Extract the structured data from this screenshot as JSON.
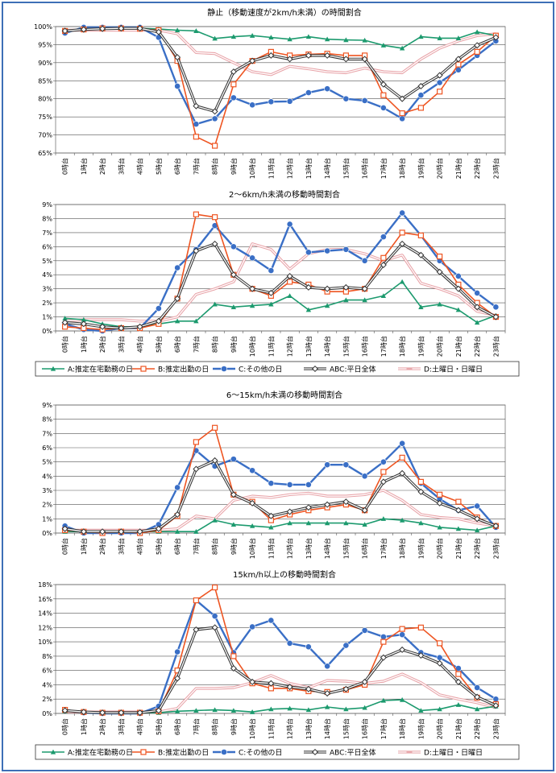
{
  "colors": {
    "A": "#1c9a6e",
    "B": "#ee5522",
    "C": "#3a6fc6",
    "ABC": "#333333",
    "D": "#e8a3a8",
    "frame": "#3d6fb6"
  },
  "legend": [
    {
      "key": "A",
      "label": "A:推定在宅勤務の日"
    },
    {
      "key": "B",
      "label": "B:推定出勤の日"
    },
    {
      "key": "C",
      "label": "C:その他の日"
    },
    {
      "key": "ABC",
      "label": "ABC:平日全体"
    },
    {
      "key": "D",
      "label": "D:土曜日・日曜日"
    }
  ],
  "chart_data": [
    {
      "type": "line",
      "title": "静止（移動速度が2km/h未満）の時間割合",
      "categories": [
        "0時台",
        "1時台",
        "2時台",
        "3時台",
        "4時台",
        "5時台",
        "6時台",
        "7時台",
        "8時台",
        "9時台",
        "10時台",
        "11時台",
        "12時台",
        "13時台",
        "14時台",
        "15時台",
        "16時台",
        "17時台",
        "18時台",
        "19時台",
        "20時台",
        "21時台",
        "22時台",
        "23時台"
      ],
      "ylim": [
        65,
        100
      ],
      "yticks": [
        65,
        70,
        75,
        80,
        85,
        90,
        95,
        100
      ],
      "unit": "%",
      "series": [
        {
          "key": "A",
          "values": [
            99.0,
            99.2,
            99.5,
            99.6,
            99.5,
            99.3,
            99.0,
            98.8,
            96.7,
            97.2,
            97.5,
            97.0,
            96.5,
            97.2,
            96.5,
            96.3,
            96.2,
            94.8,
            94.0,
            97.2,
            96.8,
            96.8,
            98.5,
            97.5
          ]
        },
        {
          "key": "B",
          "values": [
            98.8,
            99.2,
            99.5,
            99.5,
            99.4,
            99.0,
            90.5,
            69.5,
            67.0,
            84.0,
            90.5,
            93.0,
            92.0,
            92.3,
            92.5,
            92.0,
            92.0,
            81.0,
            76.0,
            77.5,
            82.0,
            89.5,
            93.0,
            97.5
          ]
        },
        {
          "key": "C",
          "values": [
            98.2,
            99.8,
            99.8,
            99.8,
            99.8,
            97.0,
            83.5,
            73.0,
            74.5,
            80.3,
            78.3,
            79.2,
            79.3,
            81.7,
            82.8,
            80.0,
            79.5,
            77.5,
            74.5,
            81.0,
            84.5,
            88.0,
            92.0,
            96.0
          ]
        },
        {
          "key": "ABC",
          "values": [
            98.8,
            99.2,
            99.4,
            99.5,
            99.5,
            98.5,
            91.5,
            78.0,
            76.5,
            87.5,
            90.5,
            92.0,
            91.0,
            92.0,
            92.0,
            91.0,
            91.0,
            84.0,
            80.0,
            83.5,
            86.5,
            91.0,
            94.8,
            97.0
          ]
        },
        {
          "key": "D",
          "values": [
            99.0,
            99.0,
            99.0,
            99.0,
            99.0,
            99.0,
            98.0,
            92.8,
            92.5,
            90.0,
            87.5,
            86.7,
            89.0,
            88.3,
            87.5,
            87.2,
            88.5,
            87.5,
            87.2,
            91.0,
            94.0,
            96.0,
            97.5,
            98.0
          ]
        }
      ]
    },
    {
      "type": "line",
      "title": "2～6km/h未満の移動時間割合",
      "categories": [
        "0時台",
        "1時台",
        "2時台",
        "3時台",
        "4時台",
        "5時台",
        "6時台",
        "7時台",
        "8時台",
        "9時台",
        "10時台",
        "11時台",
        "12時台",
        "13時台",
        "14時台",
        "15時台",
        "16時台",
        "17時台",
        "18時台",
        "19時台",
        "20時台",
        "21時台",
        "22時台",
        "23時台"
      ],
      "ylim": [
        0,
        9
      ],
      "yticks": [
        0,
        1,
        2,
        3,
        4,
        5,
        6,
        7,
        8,
        9
      ],
      "unit": "%",
      "series": [
        {
          "key": "A",
          "values": [
            0.9,
            0.8,
            0.5,
            0.3,
            0.3,
            0.5,
            0.7,
            0.7,
            1.9,
            1.7,
            1.8,
            1.9,
            2.5,
            1.5,
            1.8,
            2.2,
            2.2,
            2.5,
            3.5,
            1.7,
            1.9,
            1.5,
            0.6,
            1.1
          ]
        },
        {
          "key": "B",
          "values": [
            0.3,
            0.2,
            0.1,
            0.2,
            0.2,
            0.5,
            2.3,
            8.3,
            8.1,
            4.0,
            3.0,
            2.5,
            3.5,
            3.3,
            2.8,
            2.8,
            3.0,
            5.2,
            7.0,
            6.8,
            5.3,
            3.3,
            2.0,
            1.0
          ]
        },
        {
          "key": "C",
          "values": [
            0.5,
            0.1,
            0.0,
            0.2,
            0.2,
            1.6,
            4.5,
            5.8,
            7.5,
            6.0,
            5.2,
            4.3,
            7.6,
            5.6,
            5.7,
            5.8,
            5.0,
            6.7,
            8.4,
            6.8,
            5.0,
            3.9,
            2.7,
            1.7
          ]
        },
        {
          "key": "ABC",
          "values": [
            0.6,
            0.5,
            0.3,
            0.2,
            0.3,
            0.7,
            2.3,
            5.7,
            6.2,
            4.0,
            3.0,
            2.7,
            3.9,
            3.1,
            3.0,
            3.1,
            3.0,
            4.7,
            6.2,
            5.4,
            4.2,
            3.0,
            1.7,
            1.0
          ]
        },
        {
          "key": "D",
          "values": [
            0.7,
            0.8,
            0.8,
            0.8,
            0.7,
            0.7,
            1.0,
            2.6,
            3.0,
            3.5,
            6.2,
            5.8,
            4.4,
            5.5,
            5.8,
            5.8,
            5.5,
            5.0,
            5.4,
            3.4,
            3.0,
            2.5,
            1.4,
            1.1
          ]
        }
      ]
    },
    {
      "type": "line",
      "title": "6～15km/h未満の移動時間割合",
      "categories": [
        "0時台",
        "1時台",
        "2時台",
        "3時台",
        "4時台",
        "5時台",
        "6時台",
        "7時台",
        "8時台",
        "9時台",
        "10時台",
        "11時台",
        "12時台",
        "13時台",
        "14時台",
        "15時台",
        "16時台",
        "17時台",
        "18時台",
        "19時台",
        "20時台",
        "21時台",
        "22時台",
        "23時台"
      ],
      "ylim": [
        0,
        9
      ],
      "yticks": [
        0,
        1,
        2,
        3,
        4,
        5,
        6,
        7,
        8,
        9
      ],
      "unit": "%",
      "series": [
        {
          "key": "A",
          "values": [
            0.1,
            0.1,
            0.1,
            0.1,
            0.1,
            0.1,
            0.1,
            0.1,
            0.9,
            0.6,
            0.5,
            0.4,
            0.7,
            0.7,
            0.7,
            0.7,
            0.6,
            1.0,
            0.9,
            0.7,
            0.4,
            0.3,
            0.2,
            0.5
          ]
        },
        {
          "key": "B",
          "values": [
            0.2,
            0.1,
            0.0,
            0.1,
            0.0,
            0.2,
            1.2,
            6.4,
            7.4,
            2.7,
            2.2,
            0.9,
            1.3,
            1.6,
            1.8,
            2.0,
            1.6,
            4.3,
            5.3,
            3.6,
            2.7,
            2.2,
            1.1,
            0.5
          ]
        },
        {
          "key": "C",
          "values": [
            0.5,
            0.0,
            0.0,
            0.0,
            0.0,
            0.6,
            3.2,
            5.8,
            4.7,
            5.2,
            4.4,
            3.5,
            3.4,
            3.4,
            4.8,
            4.8,
            4.0,
            5.0,
            6.3,
            3.5,
            2.4,
            1.6,
            1.9,
            0.4
          ]
        },
        {
          "key": "ABC",
          "values": [
            0.3,
            0.1,
            0.1,
            0.1,
            0.1,
            0.3,
            1.3,
            4.5,
            5.1,
            2.7,
            2.1,
            1.2,
            1.5,
            1.8,
            2.0,
            2.2,
            1.6,
            3.6,
            4.2,
            2.9,
            2.1,
            1.6,
            1.0,
            0.5
          ]
        },
        {
          "key": "D",
          "values": [
            0.2,
            0.2,
            0.2,
            0.2,
            0.2,
            0.2,
            0.3,
            1.2,
            1.0,
            2.3,
            2.6,
            2.5,
            2.7,
            2.8,
            2.6,
            2.6,
            2.7,
            3.0,
            2.3,
            1.3,
            1.1,
            1.0,
            0.7,
            0.5
          ]
        }
      ]
    },
    {
      "type": "line",
      "title": "15km/h以上の移動時間割合",
      "categories": [
        "0時台",
        "1時台",
        "2時台",
        "3時台",
        "4時台",
        "5時台",
        "6時台",
        "7時台",
        "8時台",
        "9時台",
        "10時台",
        "11時台",
        "12時台",
        "13時台",
        "14時台",
        "15時台",
        "16時台",
        "17時台",
        "18時台",
        "19時台",
        "20時台",
        "21時台",
        "22時台",
        "23時台"
      ],
      "ylim": [
        0,
        18
      ],
      "yticks": [
        0,
        2,
        4,
        6,
        8,
        10,
        12,
        14,
        16,
        18
      ],
      "unit": "%",
      "series": [
        {
          "key": "A",
          "values": [
            0.3,
            0.2,
            0.1,
            0.1,
            0.1,
            0.1,
            0.3,
            0.4,
            0.5,
            0.4,
            0.2,
            0.6,
            0.7,
            0.5,
            0.9,
            0.6,
            0.8,
            1.8,
            1.9,
            0.4,
            0.6,
            1.2,
            0.6,
            1.0
          ]
        },
        {
          "key": "B",
          "values": [
            0.5,
            0.2,
            0.1,
            0.1,
            0.1,
            0.3,
            6.0,
            15.8,
            17.6,
            8.0,
            4.2,
            3.5,
            3.5,
            3.1,
            3.0,
            3.3,
            4.0,
            10.0,
            11.8,
            12.0,
            9.8,
            5.5,
            2.2,
            1.3
          ]
        },
        {
          "key": "C",
          "values": [
            0.5,
            0.1,
            0.0,
            0.0,
            0.0,
            1.0,
            8.6,
            15.8,
            13.6,
            8.5,
            12.1,
            13.0,
            9.8,
            9.3,
            6.6,
            9.5,
            11.6,
            10.7,
            11.0,
            8.5,
            7.8,
            6.3,
            3.6,
            2.0
          ]
        },
        {
          "key": "ABC",
          "values": [
            0.4,
            0.2,
            0.1,
            0.1,
            0.1,
            0.4,
            4.9,
            11.7,
            12.0,
            6.3,
            4.4,
            4.2,
            3.7,
            3.4,
            2.8,
            3.4,
            4.4,
            7.8,
            8.9,
            8.1,
            7.0,
            4.4,
            2.3,
            1.1
          ]
        },
        {
          "key": "D",
          "values": [
            0.2,
            0.2,
            0.2,
            0.2,
            0.2,
            0.2,
            0.7,
            3.5,
            3.5,
            3.6,
            4.3,
            5.3,
            4.2,
            3.6,
            4.6,
            4.5,
            4.2,
            4.5,
            5.5,
            4.3,
            2.6,
            2.0,
            1.5,
            0.8
          ]
        }
      ]
    }
  ]
}
